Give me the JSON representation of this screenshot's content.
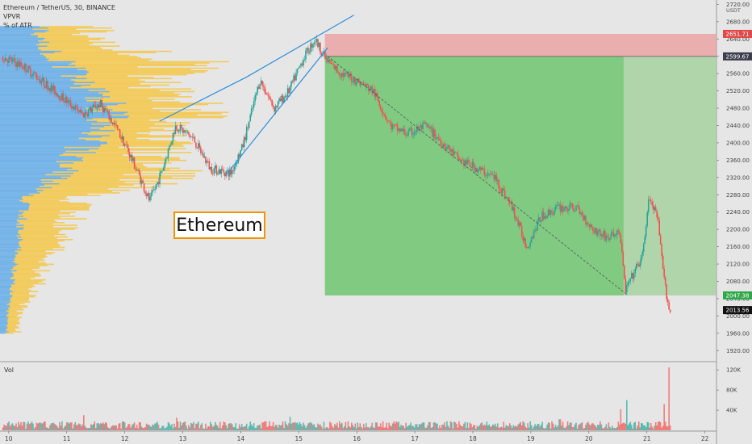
{
  "legend": {
    "title": "Ethereum / TetherUS, 30, BINANCE",
    "indicators": [
      "VPVR",
      "% of ATR"
    ]
  },
  "annotation": {
    "text": "Ethereum"
  },
  "volume_label": "Vol",
  "axis_unit": "USDT",
  "price_tags": [
    {
      "label": "2651.71",
      "value": 2651.71,
      "color": "#e04a4a"
    },
    {
      "label": "2599.67",
      "value": 2599.67,
      "color": "#3d3d4d"
    },
    {
      "label": "2047.38",
      "value": 2047.38,
      "color": "#30a84a"
    },
    {
      "label": "2013.56",
      "value": 2013.56,
      "color": "#111111"
    }
  ],
  "colors": {
    "up": "#26a69a",
    "down": "#ef5350",
    "vpvr_up": "#5ea9e8",
    "vpvr_down": "#f4c542",
    "profit_zone": "#6fc46f",
    "stop_zone": "#eba3a3",
    "trendline": "#2f8fdc"
  },
  "chart_data": [
    {
      "type": "line",
      "title": "Ethereum / TetherUS, 30, BINANCE",
      "ylabel": "USDT",
      "ylim": [
        1900,
        2730
      ],
      "y_ticks": [
        1920,
        1960,
        2000,
        2040,
        2080,
        2120,
        2160,
        2200,
        2240,
        2280,
        2320,
        2360,
        2400,
        2440,
        2480,
        2520,
        2560,
        2600,
        2640,
        2680,
        2720
      ],
      "y_tick_labels": [
        "1920.00",
        "1960.00",
        "2000.00",
        "2040.00",
        "2080.00",
        "2120.00",
        "2160.00",
        "2200.00",
        "2240.00",
        "2280.00",
        "2320.00",
        "2360.00",
        "2400.00",
        "2440.00",
        "2480.00",
        "2520.00",
        "2560.00",
        "2600.00",
        "2640.00",
        "2680.00",
        "2720.00"
      ],
      "xlim": [
        9.85,
        22.2
      ],
      "x_ticks": [
        10,
        11,
        12,
        13,
        14,
        15,
        16,
        17,
        18,
        19,
        20,
        21,
        22
      ],
      "x_tick_labels": [
        "10",
        "11",
        "12",
        "13",
        "14",
        "15",
        "16",
        "17",
        "18",
        "19",
        "20",
        "21",
        "22"
      ],
      "price_path": {
        "x": [
          9.9,
          10.3,
          10.9,
          11.3,
          11.6,
          11.85,
          12.05,
          12.25,
          12.45,
          12.65,
          12.9,
          13.2,
          13.5,
          13.85,
          14.05,
          14.35,
          14.6,
          14.85,
          15.1,
          15.3,
          15.5,
          15.75,
          16.0,
          16.3,
          16.6,
          16.9,
          17.2,
          17.5,
          17.8,
          18.1,
          18.4,
          18.7,
          18.95,
          19.2,
          19.5,
          19.8,
          20.1,
          20.35,
          20.55,
          20.65,
          20.8,
          20.95,
          21.05,
          21.2,
          21.32,
          21.42
        ],
        "y": [
          2600,
          2575,
          2510,
          2465,
          2490,
          2440,
          2390,
          2330,
          2265,
          2330,
          2440,
          2410,
          2340,
          2330,
          2390,
          2545,
          2480,
          2520,
          2595,
          2640,
          2590,
          2560,
          2545,
          2520,
          2440,
          2420,
          2440,
          2400,
          2360,
          2340,
          2320,
          2250,
          2160,
          2230,
          2250,
          2250,
          2200,
          2180,
          2195,
          2060,
          2100,
          2140,
          2270,
          2230,
          2080,
          2005
        ]
      },
      "rising_wedge": {
        "upper": {
          "x": [
            12.6,
            14.1,
            15.95
          ],
          "y": [
            2450,
            2552,
            2695
          ]
        },
        "lower": {
          "x": [
            13.75,
            15.5
          ],
          "y": [
            2327,
            2620
          ]
        }
      },
      "descending_trend": {
        "x": [
          15.5,
          20.65
        ],
        "y": [
          2600,
          2050
        ]
      },
      "position_zones": {
        "entry": 2599.67,
        "stop": 2651.71,
        "target": 2047.38,
        "x_start": 15.45,
        "x_end": 22.2,
        "x_split": 20.6
      },
      "last_price": 2013.56
    },
    {
      "type": "bar",
      "name": "Vol",
      "ylim": [
        0,
        130000
      ],
      "y_ticks": [
        40000,
        80000,
        120000
      ],
      "y_tick_labels": [
        "40K",
        "80K",
        "120K"
      ],
      "spikes": [
        {
          "x": 11.3,
          "value": 30000
        },
        {
          "x": 12.9,
          "value": 25000
        },
        {
          "x": 14.85,
          "value": 27000
        },
        {
          "x": 19.5,
          "value": 22000
        },
        {
          "x": 20.55,
          "value": 42000
        },
        {
          "x": 20.65,
          "value": 60000
        },
        {
          "x": 21.3,
          "value": 52000
        },
        {
          "x": 21.38,
          "value": 125000
        }
      ],
      "baseline_range": [
        3000,
        18000
      ]
    },
    {
      "type": "bar",
      "name": "VPVR",
      "price_range": [
        1960,
        2670
      ],
      "profile": [
        {
          "price": 1990,
          "up": 8,
          "down": 12
        },
        {
          "price": 2030,
          "up": 10,
          "down": 18
        },
        {
          "price": 2070,
          "up": 14,
          "down": 28
        },
        {
          "price": 2110,
          "up": 16,
          "down": 32
        },
        {
          "price": 2150,
          "up": 20,
          "down": 40
        },
        {
          "price": 2190,
          "up": 22,
          "down": 50
        },
        {
          "price": 2230,
          "up": 25,
          "down": 55
        },
        {
          "price": 2270,
          "up": 30,
          "down": 60
        },
        {
          "price": 2310,
          "up": 60,
          "down": 120
        },
        {
          "price": 2350,
          "up": 80,
          "down": 110
        },
        {
          "price": 2390,
          "up": 95,
          "down": 80
        },
        {
          "price": 2430,
          "up": 110,
          "down": 70
        },
        {
          "price": 2470,
          "up": 120,
          "down": 95
        },
        {
          "price": 2510,
          "up": 115,
          "down": 85
        },
        {
          "price": 2550,
          "up": 90,
          "down": 90
        },
        {
          "price": 2590,
          "up": 70,
          "down": 150
        },
        {
          "price": 2630,
          "up": 45,
          "down": 60
        }
      ]
    }
  ]
}
